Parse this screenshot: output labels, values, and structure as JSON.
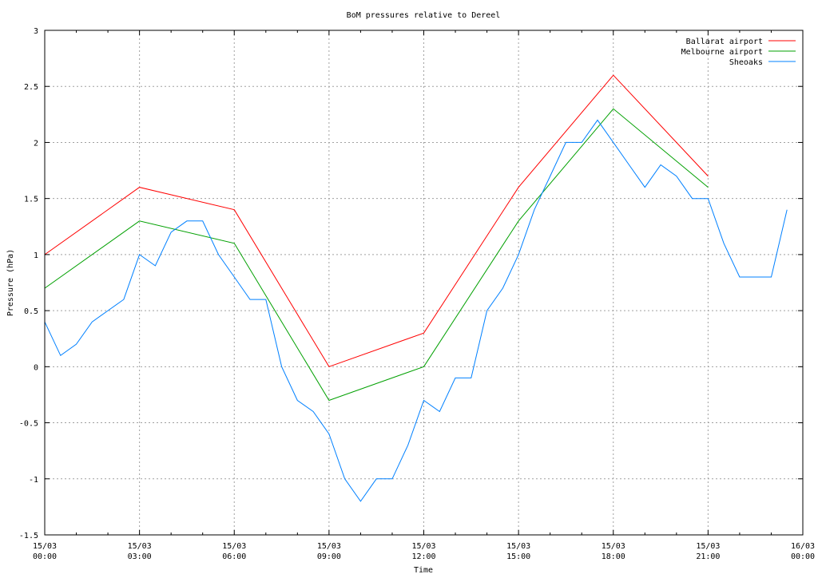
{
  "chart_data": {
    "type": "line",
    "title": "BoM pressures relative to Dereel",
    "xlabel": "Time",
    "ylabel": "Pressure (hPa)",
    "xlim": [
      0,
      24
    ],
    "ylim": [
      -1.5,
      3
    ],
    "grid": true,
    "legend_position": "top-right",
    "x_ticks": [
      {
        "value": 0,
        "line1": "15/03",
        "line2": "00:00"
      },
      {
        "value": 3,
        "line1": "15/03",
        "line2": "03:00"
      },
      {
        "value": 6,
        "line1": "15/03",
        "line2": "06:00"
      },
      {
        "value": 9,
        "line1": "15/03",
        "line2": "09:00"
      },
      {
        "value": 12,
        "line1": "15/03",
        "line2": "12:00"
      },
      {
        "value": 15,
        "line1": "15/03",
        "line2": "15:00"
      },
      {
        "value": 18,
        "line1": "15/03",
        "line2": "18:00"
      },
      {
        "value": 21,
        "line1": "15/03",
        "line2": "21:00"
      },
      {
        "value": 24,
        "line1": "16/03",
        "line2": "00:00"
      }
    ],
    "y_ticks": [
      {
        "value": 3,
        "label": "3"
      },
      {
        "value": 2.5,
        "label": "2.5"
      },
      {
        "value": 2,
        "label": "2"
      },
      {
        "value": 1.5,
        "label": "1.5"
      },
      {
        "value": 1,
        "label": "1"
      },
      {
        "value": 0.5,
        "label": "0.5"
      },
      {
        "value": 0,
        "label": "0"
      },
      {
        "value": -0.5,
        "label": "-0.5"
      },
      {
        "value": -1,
        "label": "-1"
      },
      {
        "value": -1.5,
        "label": "-1.5"
      }
    ],
    "series": [
      {
        "name": "Ballarat airport",
        "color": "#ff0000",
        "x": [
          0,
          3,
          6,
          9,
          12,
          15,
          18,
          21
        ],
        "y": [
          1.0,
          1.6,
          1.4,
          0.0,
          0.3,
          1.6,
          2.6,
          1.7
        ]
      },
      {
        "name": "Melbourne airport",
        "color": "#00a000",
        "x": [
          0,
          3,
          6,
          9,
          12,
          15,
          18,
          21
        ],
        "y": [
          0.7,
          1.3,
          1.1,
          -0.3,
          0.0,
          1.3,
          2.3,
          1.6
        ]
      },
      {
        "name": "Sheoaks",
        "color": "#0080ff",
        "x": [
          0,
          0.5,
          1,
          1.5,
          2,
          2.5,
          3,
          3.5,
          4,
          4.5,
          5,
          5.5,
          6,
          6.5,
          7,
          7.5,
          8,
          8.5,
          9,
          9.5,
          10,
          10.5,
          11,
          11.5,
          12,
          12.5,
          13,
          13.5,
          14,
          14.5,
          15,
          15.5,
          16,
          16.5,
          17,
          17.5,
          18,
          18.5,
          19,
          19.5,
          20,
          20.5,
          21,
          21.5,
          22,
          22.5,
          23,
          23.5
        ],
        "y": [
          0.4,
          0.1,
          0.2,
          0.4,
          0.5,
          0.6,
          1.0,
          0.9,
          1.2,
          1.3,
          1.3,
          1.0,
          0.8,
          0.6,
          0.6,
          0.0,
          -0.3,
          -0.4,
          -0.6,
          -1.0,
          -1.2,
          -1.0,
          -1.0,
          -0.7,
          -0.3,
          -0.4,
          -0.1,
          -0.1,
          0.5,
          0.7,
          1.0,
          1.4,
          1.7,
          2.0,
          2.0,
          2.2,
          2.0,
          1.8,
          1.6,
          1.8,
          1.7,
          1.5,
          1.5,
          1.1,
          0.8,
          0.8,
          0.8,
          1.4
        ]
      }
    ]
  }
}
